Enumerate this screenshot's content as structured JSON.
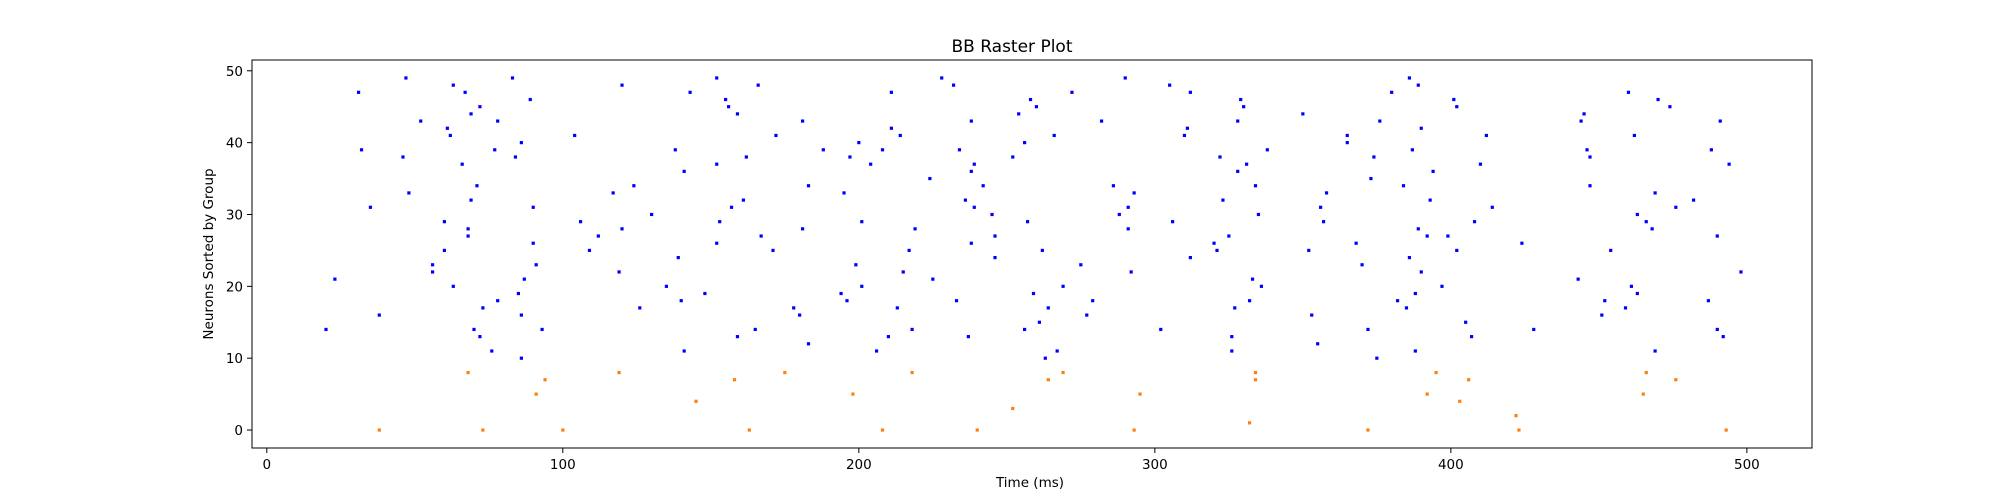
{
  "chart_data": {
    "type": "scatter",
    "title": "BB Raster Plot",
    "xlabel": "Time (ms)",
    "ylabel": "Neurons Sorted by Group",
    "xlim": [
      -5,
      522
    ],
    "ylim": [
      -2.5,
      51.5
    ],
    "xticks": [
      0,
      100,
      200,
      300,
      400,
      500
    ],
    "yticks": [
      0,
      10,
      20,
      30,
      40,
      50
    ],
    "grid": false,
    "series": [
      {
        "color": "#0000ff",
        "points": [
          [
            20,
            14
          ],
          [
            23,
            21
          ],
          [
            31,
            47
          ],
          [
            32,
            39
          ],
          [
            35,
            31
          ],
          [
            38,
            16
          ],
          [
            46,
            38
          ],
          [
            47,
            49
          ],
          [
            48,
            33
          ],
          [
            52,
            43
          ],
          [
            56,
            23
          ],
          [
            56,
            22
          ],
          [
            60,
            29
          ],
          [
            60,
            25
          ],
          [
            61,
            42
          ],
          [
            62,
            41
          ],
          [
            63,
            20
          ],
          [
            63,
            48
          ],
          [
            66,
            37
          ],
          [
            67,
            47
          ],
          [
            68,
            28
          ],
          [
            68,
            27
          ],
          [
            69,
            32
          ],
          [
            69,
            44
          ],
          [
            70,
            14
          ],
          [
            71,
            34
          ],
          [
            72,
            45
          ],
          [
            72,
            13
          ],
          [
            73,
            17
          ],
          [
            76,
            11
          ],
          [
            77,
            39
          ],
          [
            78,
            18
          ],
          [
            78,
            43
          ],
          [
            83,
            49
          ],
          [
            84,
            38
          ],
          [
            85,
            19
          ],
          [
            86,
            40
          ],
          [
            86,
            16
          ],
          [
            86,
            10
          ],
          [
            87,
            21
          ],
          [
            89,
            46
          ],
          [
            90,
            31
          ],
          [
            90,
            26
          ],
          [
            91,
            23
          ],
          [
            93,
            14
          ],
          [
            104,
            41
          ],
          [
            106,
            29
          ],
          [
            109,
            25
          ],
          [
            112,
            27
          ],
          [
            117,
            33
          ],
          [
            119,
            22
          ],
          [
            120,
            48
          ],
          [
            120,
            28
          ],
          [
            124,
            34
          ],
          [
            126,
            17
          ],
          [
            130,
            30
          ],
          [
            135,
            20
          ],
          [
            138,
            39
          ],
          [
            139,
            24
          ],
          [
            140,
            18
          ],
          [
            141,
            11
          ],
          [
            141,
            36
          ],
          [
            143,
            47
          ],
          [
            148,
            19
          ],
          [
            152,
            37
          ],
          [
            152,
            26
          ],
          [
            152,
            49
          ],
          [
            153,
            29
          ],
          [
            155,
            46
          ],
          [
            156,
            45
          ],
          [
            157,
            31
          ],
          [
            159,
            44
          ],
          [
            159,
            13
          ],
          [
            161,
            32
          ],
          [
            162,
            38
          ],
          [
            165,
            14
          ],
          [
            166,
            48
          ],
          [
            167,
            27
          ],
          [
            171,
            25
          ],
          [
            172,
            41
          ],
          [
            178,
            17
          ],
          [
            180,
            16
          ],
          [
            181,
            43
          ],
          [
            181,
            28
          ],
          [
            183,
            12
          ],
          [
            183,
            34
          ],
          [
            188,
            39
          ],
          [
            194,
            19
          ],
          [
            195,
            33
          ],
          [
            196,
            18
          ],
          [
            197,
            38
          ],
          [
            199,
            23
          ],
          [
            200,
            40
          ],
          [
            201,
            20
          ],
          [
            201,
            29
          ],
          [
            204,
            37
          ],
          [
            206,
            11
          ],
          [
            208,
            39
          ],
          [
            210,
            13
          ],
          [
            211,
            42
          ],
          [
            211,
            47
          ],
          [
            213,
            17
          ],
          [
            214,
            41
          ],
          [
            215,
            22
          ],
          [
            217,
            25
          ],
          [
            218,
            14
          ],
          [
            219,
            28
          ],
          [
            224,
            35
          ],
          [
            225,
            21
          ],
          [
            228,
            49
          ],
          [
            232,
            48
          ],
          [
            233,
            18
          ],
          [
            234,
            39
          ],
          [
            236,
            32
          ],
          [
            237,
            13
          ],
          [
            238,
            43
          ],
          [
            238,
            36
          ],
          [
            238,
            26
          ],
          [
            239,
            31
          ],
          [
            239,
            37
          ],
          [
            242,
            34
          ],
          [
            245,
            30
          ],
          [
            246,
            27
          ],
          [
            246,
            24
          ],
          [
            252,
            38
          ],
          [
            254,
            44
          ],
          [
            256,
            40
          ],
          [
            256,
            14
          ],
          [
            257,
            29
          ],
          [
            258,
            46
          ],
          [
            259,
            19
          ],
          [
            260,
            45
          ],
          [
            261,
            15
          ],
          [
            262,
            25
          ],
          [
            263,
            10
          ],
          [
            264,
            17
          ],
          [
            266,
            41
          ],
          [
            267,
            11
          ],
          [
            269,
            20
          ],
          [
            272,
            47
          ],
          [
            275,
            23
          ],
          [
            277,
            16
          ],
          [
            279,
            18
          ],
          [
            282,
            43
          ],
          [
            286,
            34
          ],
          [
            288,
            30
          ],
          [
            290,
            49
          ],
          [
            291,
            28
          ],
          [
            291,
            31
          ],
          [
            292,
            22
          ],
          [
            293,
            33
          ],
          [
            302,
            14
          ],
          [
            305,
            48
          ],
          [
            306,
            29
          ],
          [
            310,
            41
          ],
          [
            311,
            42
          ],
          [
            312,
            24
          ],
          [
            312,
            47
          ],
          [
            320,
            26
          ],
          [
            321,
            25
          ],
          [
            322,
            38
          ],
          [
            323,
            32
          ],
          [
            325,
            27
          ],
          [
            326,
            13
          ],
          [
            326,
            11
          ],
          [
            327,
            17
          ],
          [
            328,
            36
          ],
          [
            328,
            43
          ],
          [
            329,
            46
          ],
          [
            330,
            45
          ],
          [
            331,
            37
          ],
          [
            332,
            18
          ],
          [
            333,
            21
          ],
          [
            334,
            34
          ],
          [
            335,
            30
          ],
          [
            336,
            20
          ],
          [
            338,
            39
          ],
          [
            350,
            44
          ],
          [
            352,
            25
          ],
          [
            353,
            16
          ],
          [
            355,
            12
          ],
          [
            356,
            31
          ],
          [
            357,
            29
          ],
          [
            358,
            33
          ],
          [
            365,
            40
          ],
          [
            365,
            41
          ],
          [
            368,
            26
          ],
          [
            370,
            23
          ],
          [
            372,
            14
          ],
          [
            373,
            35
          ],
          [
            374,
            38
          ],
          [
            375,
            10
          ],
          [
            376,
            43
          ],
          [
            380,
            47
          ],
          [
            382,
            18
          ],
          [
            384,
            34
          ],
          [
            385,
            17
          ],
          [
            386,
            49
          ],
          [
            386,
            24
          ],
          [
            387,
            39
          ],
          [
            388,
            19
          ],
          [
            388,
            11
          ],
          [
            389,
            48
          ],
          [
            389,
            28
          ],
          [
            390,
            42
          ],
          [
            390,
            22
          ],
          [
            392,
            27
          ],
          [
            393,
            32
          ],
          [
            394,
            36
          ],
          [
            397,
            20
          ],
          [
            399,
            27
          ],
          [
            401,
            46
          ],
          [
            402,
            45
          ],
          [
            402,
            25
          ],
          [
            405,
            15
          ],
          [
            407,
            13
          ],
          [
            408,
            29
          ],
          [
            410,
            37
          ],
          [
            412,
            41
          ],
          [
            414,
            31
          ],
          [
            424,
            26
          ],
          [
            428,
            14
          ],
          [
            443,
            21
          ],
          [
            444,
            43
          ],
          [
            445,
            44
          ],
          [
            446,
            39
          ],
          [
            447,
            38
          ],
          [
            447,
            34
          ],
          [
            451,
            16
          ],
          [
            452,
            18
          ],
          [
            454,
            25
          ],
          [
            459,
            17
          ],
          [
            460,
            47
          ],
          [
            461,
            20
          ],
          [
            462,
            41
          ],
          [
            463,
            19
          ],
          [
            463,
            30
          ],
          [
            466,
            29
          ],
          [
            468,
            28
          ],
          [
            469,
            33
          ],
          [
            469,
            11
          ],
          [
            470,
            46
          ],
          [
            474,
            45
          ],
          [
            476,
            31
          ],
          [
            482,
            32
          ],
          [
            487,
            18
          ],
          [
            488,
            39
          ],
          [
            490,
            14
          ],
          [
            490,
            27
          ],
          [
            491,
            43
          ],
          [
            492,
            13
          ],
          [
            494,
            37
          ],
          [
            498,
            22
          ]
        ]
      },
      {
        "color": "#ff7f0e",
        "points": [
          [
            38,
            0
          ],
          [
            68,
            8
          ],
          [
            73,
            0
          ],
          [
            91,
            5
          ],
          [
            94,
            7
          ],
          [
            100,
            0
          ],
          [
            119,
            8
          ],
          [
            145,
            4
          ],
          [
            158,
            7
          ],
          [
            163,
            0
          ],
          [
            175,
            8
          ],
          [
            198,
            5
          ],
          [
            208,
            0
          ],
          [
            218,
            8
          ],
          [
            240,
            0
          ],
          [
            252,
            3
          ],
          [
            264,
            7
          ],
          [
            269,
            8
          ],
          [
            293,
            0
          ],
          [
            295,
            5
          ],
          [
            332,
            1
          ],
          [
            334,
            8
          ],
          [
            334,
            7
          ],
          [
            372,
            0
          ],
          [
            392,
            5
          ],
          [
            395,
            8
          ],
          [
            403,
            4
          ],
          [
            406,
            7
          ],
          [
            422,
            2
          ],
          [
            423,
            0
          ],
          [
            465,
            5
          ],
          [
            466,
            8
          ],
          [
            476,
            7
          ],
          [
            493,
            0
          ]
        ]
      }
    ]
  }
}
